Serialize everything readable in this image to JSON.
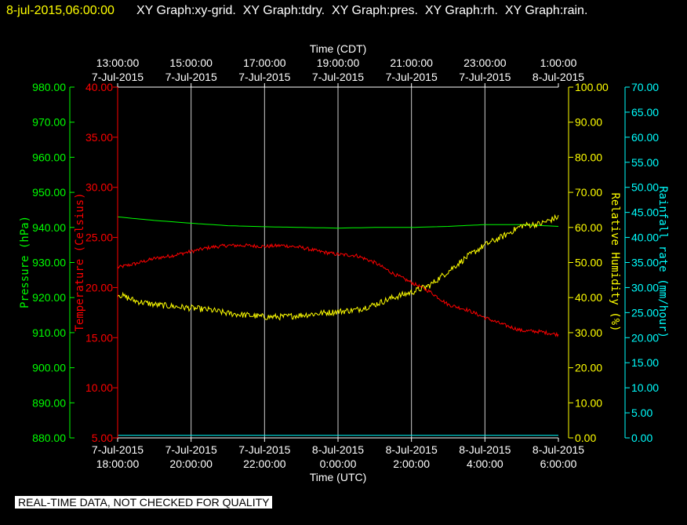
{
  "header": {
    "timestamp": "8-jul-2015,06:00:00",
    "graphs": "XY Graph:xy-grid.  XY Graph:tdry.  XY Graph:pres.  XY Graph:rh.  XY Graph:rain."
  },
  "disclaimer": "REAL-TIME DATA, NOT CHECKED FOR QUALITY",
  "colors": {
    "background": "#000000",
    "pressure": "#00ff00",
    "temperature": "#ff0000",
    "humidity": "#ffff00",
    "rain": "#00ffff",
    "grid": "#ffffff"
  },
  "chart_data": {
    "type": "line",
    "grid": true,
    "x_top": {
      "title": "Time (CDT)",
      "ticks": [
        {
          "t": 0,
          "time": "13:00:00",
          "date": "7-Jul-2015"
        },
        {
          "t": 2,
          "time": "15:00:00",
          "date": "7-Jul-2015"
        },
        {
          "t": 4,
          "time": "17:00:00",
          "date": "7-Jul-2015"
        },
        {
          "t": 6,
          "time": "19:00:00",
          "date": "7-Jul-2015"
        },
        {
          "t": 8,
          "time": "21:00:00",
          "date": "7-Jul-2015"
        },
        {
          "t": 10,
          "time": "23:00:00",
          "date": "7-Jul-2015"
        },
        {
          "t": 12,
          "time": "1:00:00",
          "date": "8-Jul-2015"
        }
      ]
    },
    "x_bottom": {
      "title": "Time (UTC)",
      "range": [
        "7-Jul-2015 18:00:00",
        "8-Jul-2015 06:00:00"
      ],
      "ticks": [
        {
          "t": 0,
          "date": "7-Jul-2015",
          "time": "18:00:00"
        },
        {
          "t": 2,
          "date": "7-Jul-2015",
          "time": "20:00:00"
        },
        {
          "t": 4,
          "date": "7-Jul-2015",
          "time": "22:00:00"
        },
        {
          "t": 6,
          "date": "8-Jul-2015",
          "time": "0:00:00"
        },
        {
          "t": 8,
          "date": "8-Jul-2015",
          "time": "2:00:00"
        },
        {
          "t": 10,
          "date": "8-Jul-2015",
          "time": "4:00:00"
        },
        {
          "t": 12,
          "date": "8-Jul-2015",
          "time": "6:00:00"
        }
      ]
    },
    "axes": {
      "pressure": {
        "title": "Pressure (hPa)",
        "range": [
          880,
          980
        ],
        "ticks": [
          "880.00",
          "890.00",
          "900.00",
          "910.00",
          "920.00",
          "930.00",
          "940.00",
          "950.00",
          "960.00",
          "970.00",
          "980.00"
        ]
      },
      "temperature": {
        "title": "Temperature (Celsius)",
        "range": [
          5,
          40
        ],
        "ticks": [
          "5.00",
          "10.00",
          "15.00",
          "20.00",
          "25.00",
          "30.00",
          "35.00",
          "40.00"
        ]
      },
      "humidity": {
        "title": "Relative Humidity (%)",
        "range": [
          0,
          100
        ],
        "ticks": [
          "0.00",
          "10.00",
          "20.00",
          "30.00",
          "40.00",
          "50.00",
          "60.00",
          "70.00",
          "80.00",
          "90.00",
          "100.00"
        ]
      },
      "rain": {
        "title": "Rainfall rate (mm/hour)",
        "range": [
          0,
          70
        ],
        "ticks": [
          "0.00",
          "5.00",
          "10.00",
          "15.00",
          "20.00",
          "25.00",
          "30.00",
          "35.00",
          "40.00",
          "45.00",
          "50.00",
          "55.00",
          "60.00",
          "65.00",
          "70.00"
        ]
      }
    },
    "series": [
      {
        "axis": "pressure",
        "color": "#00ff00",
        "noise": 0,
        "x": [
          0,
          1,
          2,
          3,
          4,
          5,
          6,
          7,
          8,
          9,
          10,
          11,
          12
        ],
        "y": [
          943.0,
          942.0,
          941.2,
          940.5,
          940.2,
          940.0,
          939.8,
          940.0,
          940.0,
          940.3,
          940.8,
          940.8,
          940.3
        ]
      },
      {
        "axis": "temperature",
        "color": "#ff0000",
        "noise": 0.18,
        "x": [
          0,
          0.5,
          1,
          1.5,
          2,
          2.5,
          3,
          3.5,
          4,
          4.5,
          5,
          5.5,
          6,
          6.5,
          7,
          7.5,
          8,
          8.5,
          9,
          9.5,
          10,
          10.5,
          11,
          11.5,
          12
        ],
        "y": [
          22.0,
          22.4,
          22.9,
          23.2,
          23.6,
          24.0,
          24.2,
          24.2,
          24.1,
          24.2,
          24.0,
          23.6,
          23.3,
          23.2,
          22.5,
          21.4,
          20.5,
          19.6,
          18.3,
          17.8,
          17.0,
          16.3,
          15.7,
          15.6,
          15.3
        ]
      },
      {
        "axis": "humidity",
        "color": "#ffff00",
        "noise": 0.9,
        "x": [
          0,
          0.5,
          1,
          1.5,
          2,
          2.5,
          3,
          3.5,
          4,
          4.5,
          5,
          5.5,
          6,
          6.5,
          7,
          7.5,
          8,
          8.5,
          9,
          9.5,
          10,
          10.5,
          11,
          11.5,
          12
        ],
        "y": [
          41.0,
          39.0,
          38.0,
          37.5,
          37.0,
          36.5,
          35.5,
          35.0,
          34.5,
          34.5,
          35.0,
          35.5,
          36.0,
          36.5,
          38.0,
          40.0,
          41.5,
          43.5,
          47.5,
          51.5,
          55.0,
          57.5,
          60.5,
          61.0,
          63.0
        ]
      },
      {
        "axis": "rain",
        "color": "#00ffff",
        "noise": 0,
        "x": [
          0,
          12
        ],
        "y": [
          0.5,
          0.5
        ]
      }
    ]
  }
}
